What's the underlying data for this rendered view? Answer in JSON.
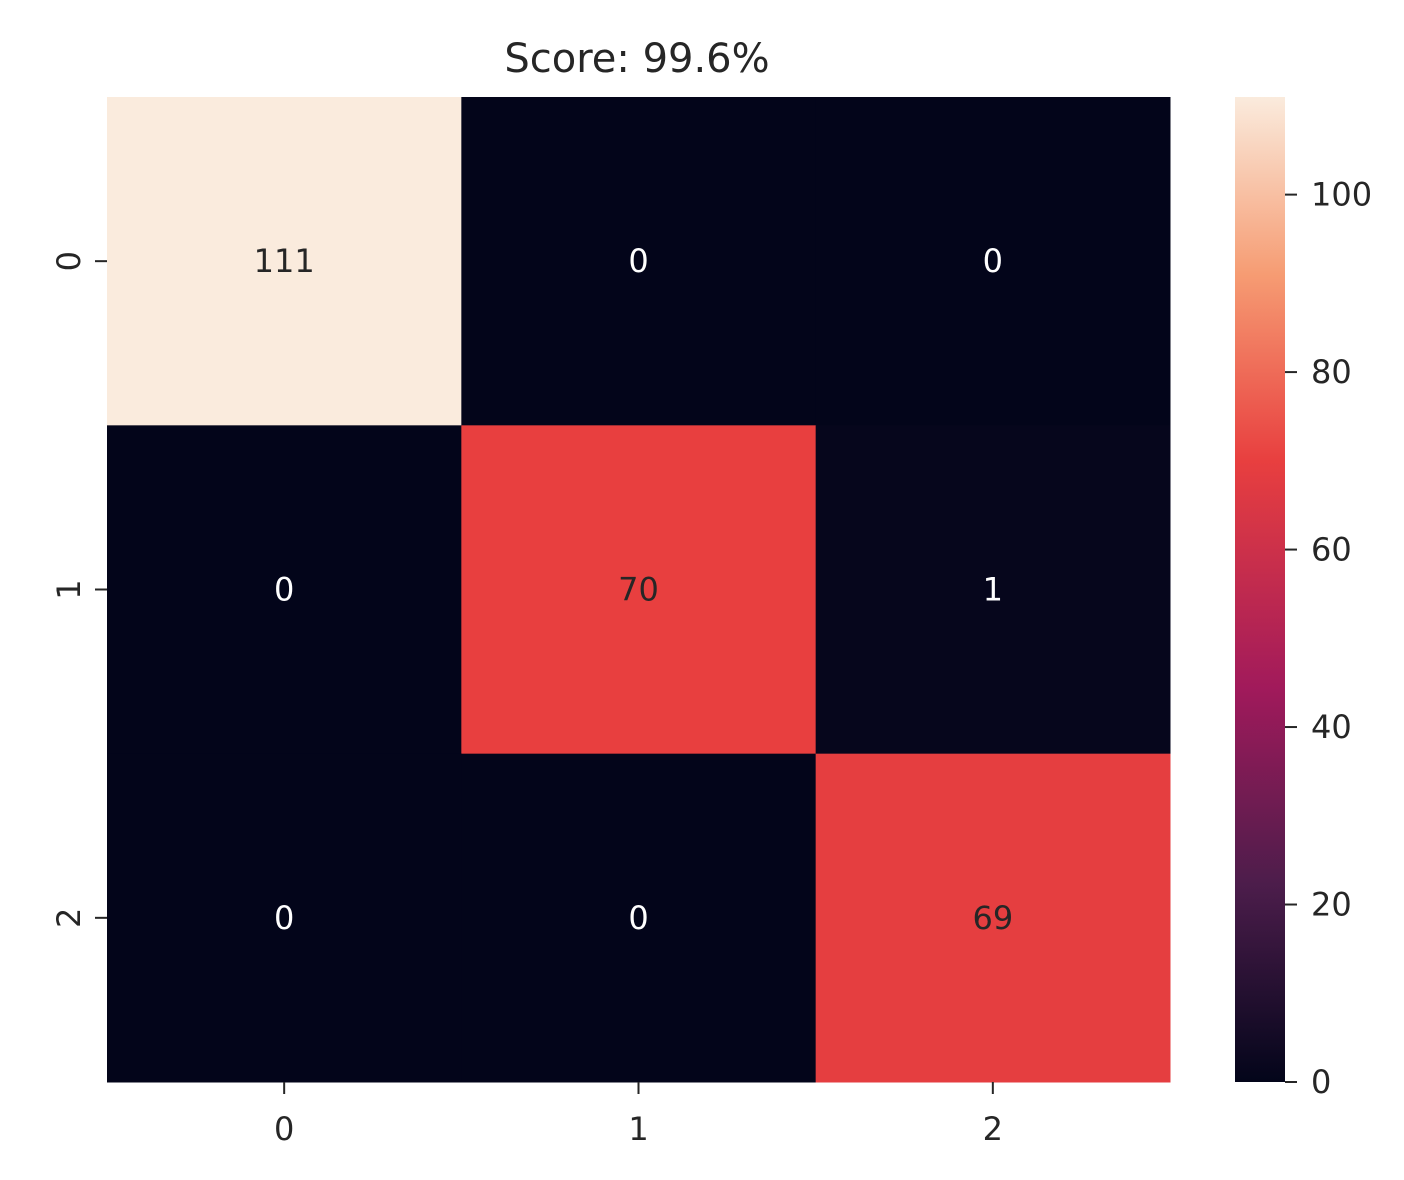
{
  "chart_data": {
    "type": "heatmap",
    "title": "Score: 99.6%",
    "x_ticks": [
      "0",
      "1",
      "2"
    ],
    "y_ticks": [
      "0",
      "1",
      "2"
    ],
    "values": [
      [
        111,
        0,
        0
      ],
      [
        0,
        70,
        1
      ],
      [
        0,
        0,
        69
      ]
    ],
    "labels": [
      [
        "111",
        "0",
        "0"
      ],
      [
        "0",
        "70",
        "1"
      ],
      [
        "0",
        "0",
        "69"
      ]
    ],
    "colorbar": {
      "range": [
        0,
        111
      ],
      "ticks": [
        "0",
        "20",
        "40",
        "60",
        "80",
        "100"
      ],
      "tick_values": [
        0,
        20,
        40,
        60,
        80,
        100
      ]
    },
    "colormap": [
      "#03051a",
      "#4c1d4b",
      "#a11a5b",
      "#e83f3f",
      "#f69c73",
      "#faebdd"
    ],
    "xlabel": "",
    "ylabel": ""
  }
}
